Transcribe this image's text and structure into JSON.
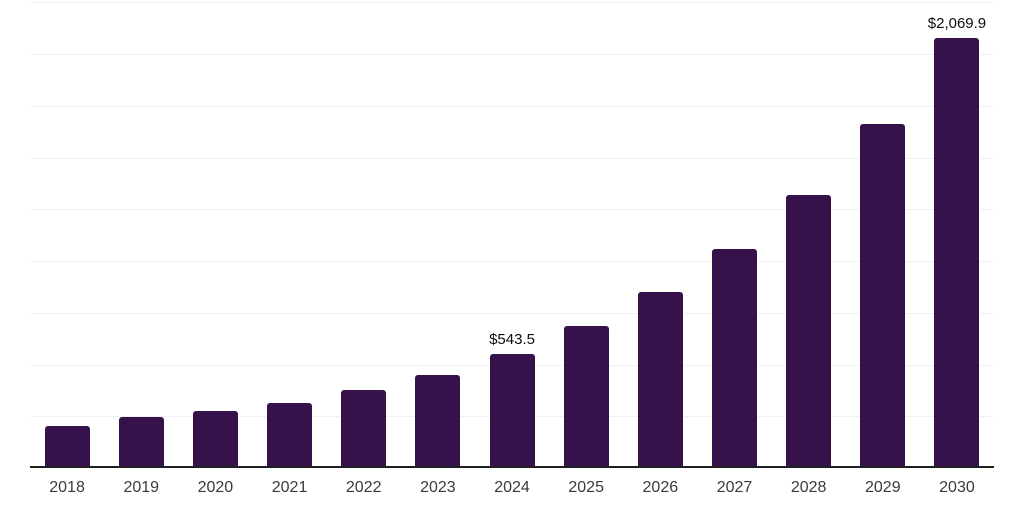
{
  "chart_data": {
    "type": "bar",
    "title": "",
    "xlabel": "",
    "ylabel": "",
    "categories": [
      "2018",
      "2019",
      "2020",
      "2021",
      "2022",
      "2023",
      "2024",
      "2025",
      "2026",
      "2027",
      "2028",
      "2029",
      "2030"
    ],
    "values": [
      192.9,
      236.3,
      265.2,
      305.2,
      367.9,
      442.2,
      543.5,
      675.1,
      842.4,
      1047.8,
      1310.2,
      1652.5,
      2069.9
    ],
    "data_labels": [
      {
        "category": "2024",
        "text": "$543.5"
      },
      {
        "category": "2030",
        "text": "$2,069.9"
      }
    ],
    "ylim": [
      0,
      2262
    ],
    "gridline_step": 250,
    "gridline_max": 2250,
    "grid": true,
    "legend": "none",
    "y_axis_labels_visible": false,
    "colors": {
      "bar": "#36124A",
      "axis_line": "#1f1f1f",
      "gridline": "#f0eff2",
      "tick_label": "#3a3a3a",
      "value_label": "#0d0d0d",
      "background": "#ffffff"
    }
  }
}
